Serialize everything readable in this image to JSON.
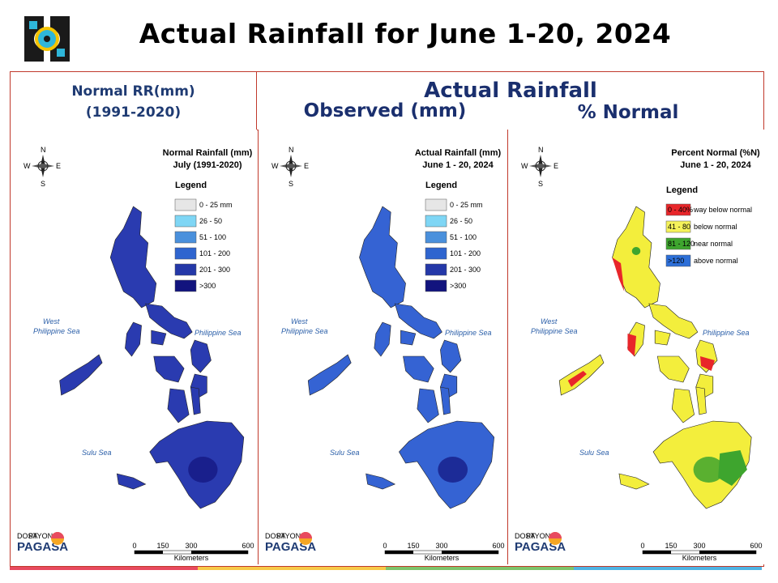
{
  "title": "Actual Rainfall for June 1-20, 2024",
  "headers": {
    "normal_line1": "Normal RR(mm)",
    "normal_line2": "(1991-2020)",
    "actual": "Actual Rainfall",
    "observed": "Observed (mm)",
    "percent": "% Normal"
  },
  "panels": [
    {
      "title1": "Normal Rainfall (mm)",
      "title2": "July (1991-2020)",
      "legend_title": "Legend",
      "legend": [
        {
          "label": "0 - 25 mm",
          "color": "#e6e6e6"
        },
        {
          "label": "26 - 50",
          "color": "#7fd6f5"
        },
        {
          "label": "51 - 100",
          "color": "#4a90dc"
        },
        {
          "label": "101 - 200",
          "color": "#2f65cf"
        },
        {
          "label": "201 - 300",
          "color": "#2438a8"
        },
        {
          "label": ">300",
          "color": "#12147e"
        }
      ],
      "map_color": "#2a3bb0",
      "sea_labels": [
        "West",
        "Philippine Sea",
        "Philippine Sea",
        "Sulu Sea"
      ]
    },
    {
      "title1": "Actual Rainfall (mm)",
      "title2": "June 1 - 20, 2024",
      "legend_title": "Legend",
      "legend": [
        {
          "label": "0 - 25 mm",
          "color": "#e6e6e6"
        },
        {
          "label": "26 - 50",
          "color": "#7fd6f5"
        },
        {
          "label": "51 - 100",
          "color": "#4a90dc"
        },
        {
          "label": "101 - 200",
          "color": "#2f65cf"
        },
        {
          "label": "201 - 300",
          "color": "#2438a8"
        },
        {
          "label": ">300",
          "color": "#12147e"
        }
      ],
      "map_color": "#3563d3",
      "sea_labels": [
        "West",
        "Philippine Sea",
        "Philippine Sea",
        "Sulu Sea"
      ]
    },
    {
      "title1": "Percent Normal (%N)",
      "title2": "June 1 - 20, 2024",
      "legend_title": "Legend",
      "legend": [
        {
          "label": "0 - 40%",
          "desc": "way below normal",
          "color": "#e8262a"
        },
        {
          "label": "41 - 80",
          "desc": "below normal",
          "color": "#f5f25a"
        },
        {
          "label": "81 - 120",
          "desc": "near normal",
          "color": "#3ea52e"
        },
        {
          "label": ">120",
          "desc": "above normal",
          "color": "#2d6fd8"
        }
      ],
      "map_color": "#f3ee3c",
      "sea_labels": [
        "West",
        "Philippine Sea",
        "Philippine Sea",
        "Sulu Sea"
      ]
    }
  ],
  "scale": {
    "ticks": [
      "0",
      "150",
      "300",
      "600"
    ],
    "unit": "Kilometers"
  },
  "compass": {
    "n": "N",
    "s": "S",
    "e": "E",
    "w": "W"
  },
  "brand": {
    "name": "PAGASA",
    "sub": "DOST",
    "tag": "PAYONG"
  },
  "bottom_colors": [
    "#e84a5f",
    "#f7c948",
    "#7ec46b",
    "#4fb3e3"
  ]
}
